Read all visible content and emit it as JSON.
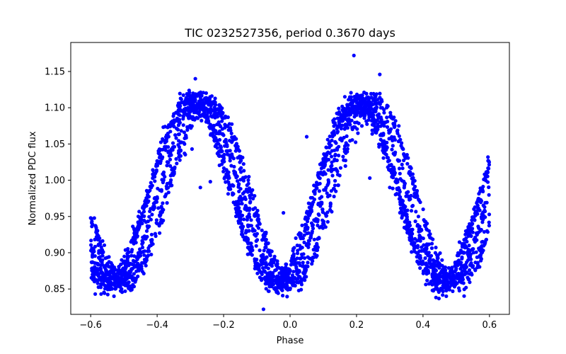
{
  "chart_data": {
    "type": "scatter",
    "title": "TIC 0232527356, period 0.3670 days",
    "xlabel": "Phase",
    "ylabel": "Normalized PDC flux",
    "xlim": [
      -0.66,
      0.66
    ],
    "ylim": [
      0.815,
      1.19
    ],
    "xticks": [
      -0.6,
      -0.4,
      -0.2,
      0.0,
      0.2,
      0.4,
      0.6
    ],
    "xtick_labels": [
      "−0.6",
      "−0.4",
      "−0.2",
      "0.0",
      "0.2",
      "0.4",
      "0.6"
    ],
    "yticks": [
      0.85,
      0.9,
      0.95,
      1.0,
      1.05,
      1.1,
      1.15
    ],
    "ytick_labels": [
      "0.85",
      "0.90",
      "0.95",
      "1.00",
      "1.05",
      "1.10",
      "1.15"
    ],
    "grid": false,
    "marker_color": "#0000ff",
    "x_range": [
      -0.6,
      0.6
    ],
    "model": {
      "description_shape": "sinusoid-like, two cycles over phase range",
      "mean": 0.983,
      "amplitude": 0.125,
      "peak_phases": [
        -0.3,
        0.2
      ],
      "trough_phases": [
        -0.56,
        -0.06,
        0.44
      ],
      "track_offsets": [
        0.0,
        0.028,
        0.055
      ],
      "noise_sigma": 0.008
    },
    "outliers": [
      {
        "x": 0.192,
        "y": 1.172
      },
      {
        "x": 0.27,
        "y": 1.146
      },
      {
        "x": -0.285,
        "y": 1.14
      },
      {
        "x": -0.295,
        "y": 1.043
      },
      {
        "x": -0.27,
        "y": 0.99
      },
      {
        "x": -0.24,
        "y": 0.998
      },
      {
        "x": 0.24,
        "y": 1.003
      },
      {
        "x": 0.3,
        "y": 0.99
      },
      {
        "x": -0.08,
        "y": 0.822
      },
      {
        "x": -0.53,
        "y": 0.84
      },
      {
        "x": 0.47,
        "y": 0.84
      },
      {
        "x": 0.05,
        "y": 0.955
      },
      {
        "x": -0.02,
        "y": 0.955
      },
      {
        "x": 0.05,
        "y": 1.06
      }
    ]
  }
}
